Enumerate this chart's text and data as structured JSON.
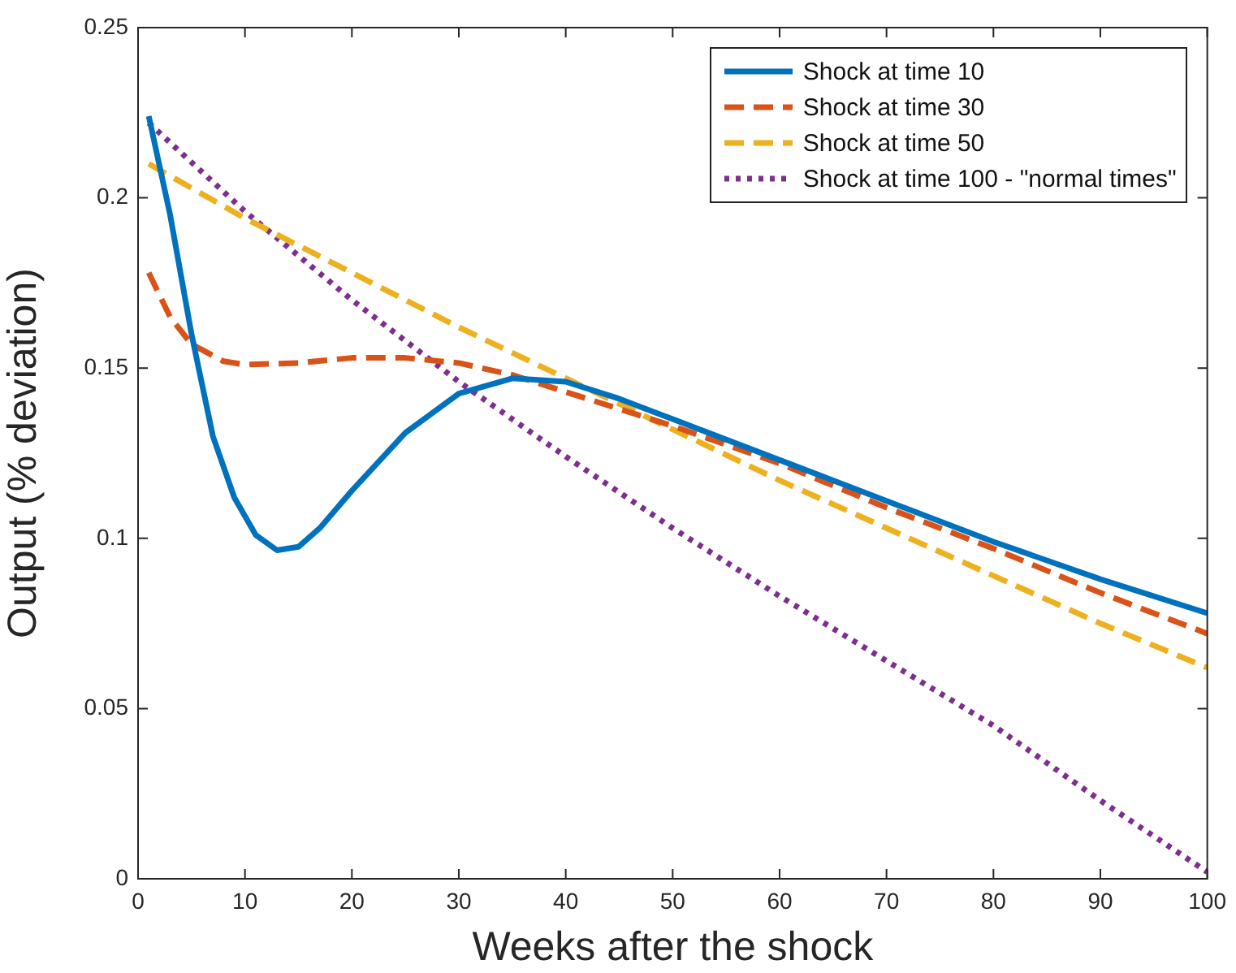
{
  "chart_data": {
    "type": "line",
    "xlabel": "Weeks after the shock",
    "ylabel": "Output (% deviation)",
    "xlim": [
      0,
      100
    ],
    "xticks": [
      0,
      10,
      20,
      30,
      40,
      50,
      60,
      70,
      80,
      90,
      100
    ],
    "ylim": [
      0,
      0.25
    ],
    "yticks": [
      0,
      0.05,
      0.1,
      0.15,
      0.2,
      0.25
    ],
    "grid": false,
    "legend": "top right",
    "marker": "none",
    "series": [
      {
        "name": "Shock at time 10",
        "color": "#0072bd",
        "line_style": "solid",
        "x": [
          1,
          3,
          5,
          7,
          9,
          11,
          13,
          15,
          17,
          20,
          25,
          30,
          35,
          40,
          45,
          50,
          60,
          70,
          80,
          90,
          100
        ],
        "values": [
          0.224,
          0.195,
          0.16,
          0.13,
          0.112,
          0.101,
          0.0965,
          0.0975,
          0.103,
          0.114,
          0.131,
          0.1425,
          0.147,
          0.146,
          0.141,
          0.135,
          0.123,
          0.111,
          0.099,
          0.088,
          0.078
        ]
      },
      {
        "name": "Shock at time 30",
        "color": "#d95319",
        "line_style": "dashed",
        "x": [
          1,
          3,
          5,
          8,
          10,
          15,
          20,
          25,
          30,
          35,
          40,
          45,
          50,
          60,
          70,
          80,
          90,
          100
        ],
        "values": [
          0.178,
          0.165,
          0.157,
          0.152,
          0.151,
          0.1515,
          0.153,
          0.153,
          0.1515,
          0.148,
          0.143,
          0.138,
          0.133,
          0.122,
          0.109,
          0.097,
          0.084,
          0.072
        ]
      },
      {
        "name": "Shock at time 50",
        "color": "#edb120",
        "line_style": "dashed",
        "x": [
          1,
          10,
          20,
          30,
          40,
          50,
          60,
          70,
          80,
          90,
          100
        ],
        "values": [
          0.21,
          0.194,
          0.178,
          0.162,
          0.147,
          0.132,
          0.117,
          0.103,
          0.089,
          0.075,
          0.062
        ]
      },
      {
        "name": "Shock at time 100 - \"normal times\"",
        "color": "#7e2f8e",
        "line_style": "dotted",
        "x": [
          1,
          10,
          20,
          30,
          40,
          50,
          60,
          70,
          80,
          90,
          100
        ],
        "values": [
          0.222,
          0.196,
          0.17,
          0.146,
          0.124,
          0.103,
          0.083,
          0.064,
          0.045,
          0.023,
          0.002
        ]
      }
    ]
  }
}
